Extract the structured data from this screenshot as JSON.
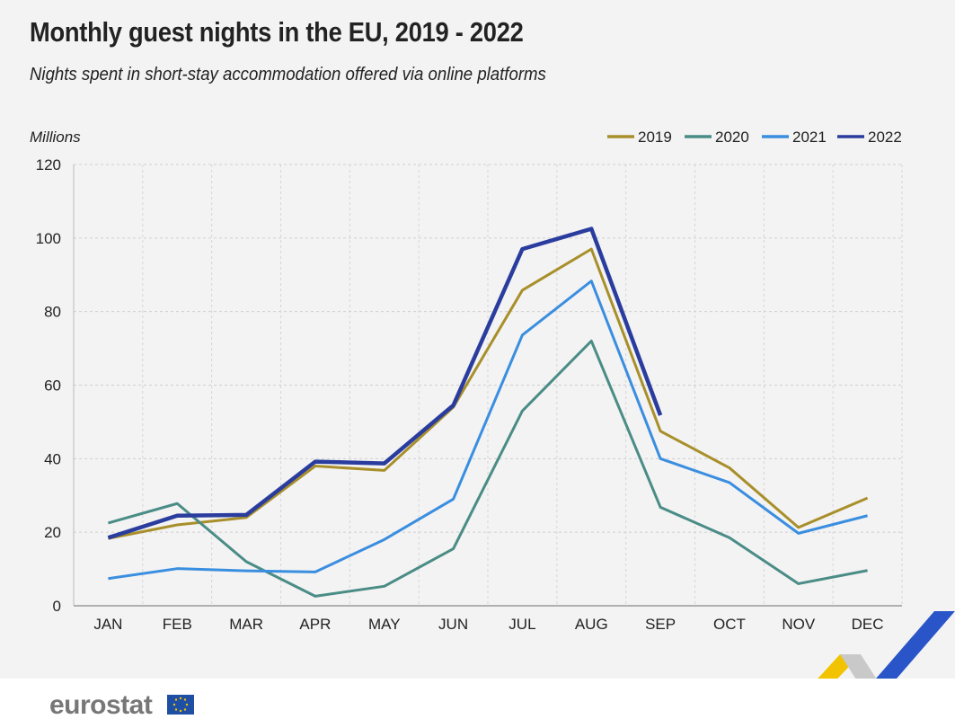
{
  "chart_data": {
    "type": "line",
    "title": "Monthly guest nights in the EU, 2019 - 2022",
    "subtitle": "Nights spent in short-stay accommodation offered via online platforms",
    "ylabel": "Millions",
    "xlabel": "",
    "ylim": [
      0,
      120
    ],
    "yticks": [
      0,
      20,
      40,
      60,
      80,
      100,
      120
    ],
    "grid": true,
    "legend_position": "top-right",
    "categories": [
      "JAN",
      "FEB",
      "MAR",
      "APR",
      "MAY",
      "JUN",
      "JUL",
      "AUG",
      "SEP",
      "OCT",
      "NOV",
      "DEC"
    ],
    "series": [
      {
        "name": "2019",
        "color": "#a88f2a",
        "values": [
          18.3,
          22.0,
          24.0,
          38.0,
          36.8,
          54.0,
          85.8,
          97.0,
          47.5,
          37.5,
          21.3,
          29.3
        ]
      },
      {
        "name": "2020",
        "color": "#4a8c86",
        "values": [
          22.5,
          27.8,
          12.0,
          2.6,
          5.3,
          15.5,
          53.0,
          72.0,
          26.8,
          18.5,
          6.0,
          9.6
        ]
      },
      {
        "name": "2021",
        "color": "#3a8ee0",
        "values": [
          7.4,
          10.1,
          9.5,
          9.2,
          18.0,
          29.0,
          73.6,
          88.3,
          40.0,
          33.5,
          19.7,
          24.5
        ]
      },
      {
        "name": "2022",
        "color": "#2a3d9e",
        "values": [
          18.5,
          24.5,
          24.7,
          39.2,
          38.7,
          54.5,
          97.0,
          102.5,
          51.8,
          null,
          null,
          null
        ]
      }
    ]
  },
  "branding": {
    "logo_text": "eurostat"
  }
}
